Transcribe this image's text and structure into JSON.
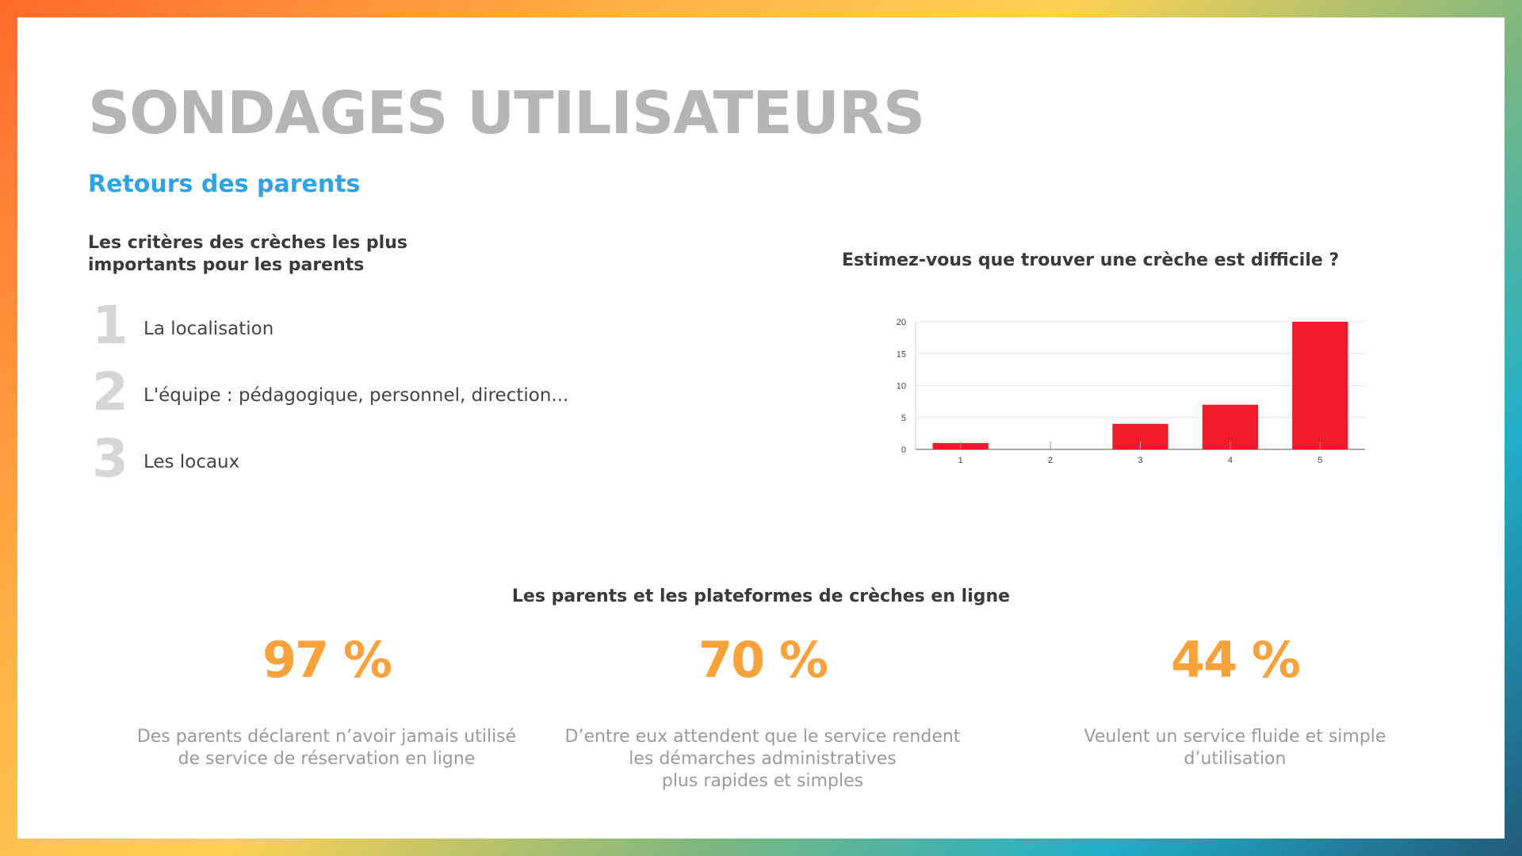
{
  "page": {
    "title": "SONDAGES UTILISATEURS",
    "subtitle": "Retours des parents"
  },
  "criteria": {
    "title": "Les critères des crèches les plus importants pour les parents",
    "items": [
      {
        "number": "1",
        "label": "La localisation"
      },
      {
        "number": "2",
        "label": "L'équipe : pédagogique, personnel, direction..."
      },
      {
        "number": "3",
        "label": "Les locaux"
      }
    ]
  },
  "chart_title": "Estimez-vous que trouver une crèche est difficile ?",
  "chart_data": {
    "type": "bar",
    "categories": [
      "1",
      "2",
      "3",
      "4",
      "5"
    ],
    "values": [
      1,
      0,
      4,
      7,
      20
    ],
    "yticks": [
      "0",
      "5",
      "10",
      "15",
      "20"
    ],
    "ylim": [
      0,
      20
    ],
    "grid": true,
    "bar_color": "#ee1c2b"
  },
  "platforms": {
    "title": "Les parents et les plateformes de crèches en ligne",
    "stats": [
      {
        "value": "97 %",
        "description": "Des parents déclarent n’avoir jamais utilisé\nde service de réservation en ligne"
      },
      {
        "value": "70 %",
        "description": "D’entre eux attendent que le service rendent\nles démarches administratives\nplus rapides et simples"
      },
      {
        "value": "44 %",
        "description": "Veulent un service fluide et simple\nd’utilisation"
      }
    ]
  },
  "colors": {
    "title": "#b5b5b5",
    "subtitle": "#2ea3e6",
    "accent": "#f9a13a",
    "bar": "#ee1c2b"
  }
}
